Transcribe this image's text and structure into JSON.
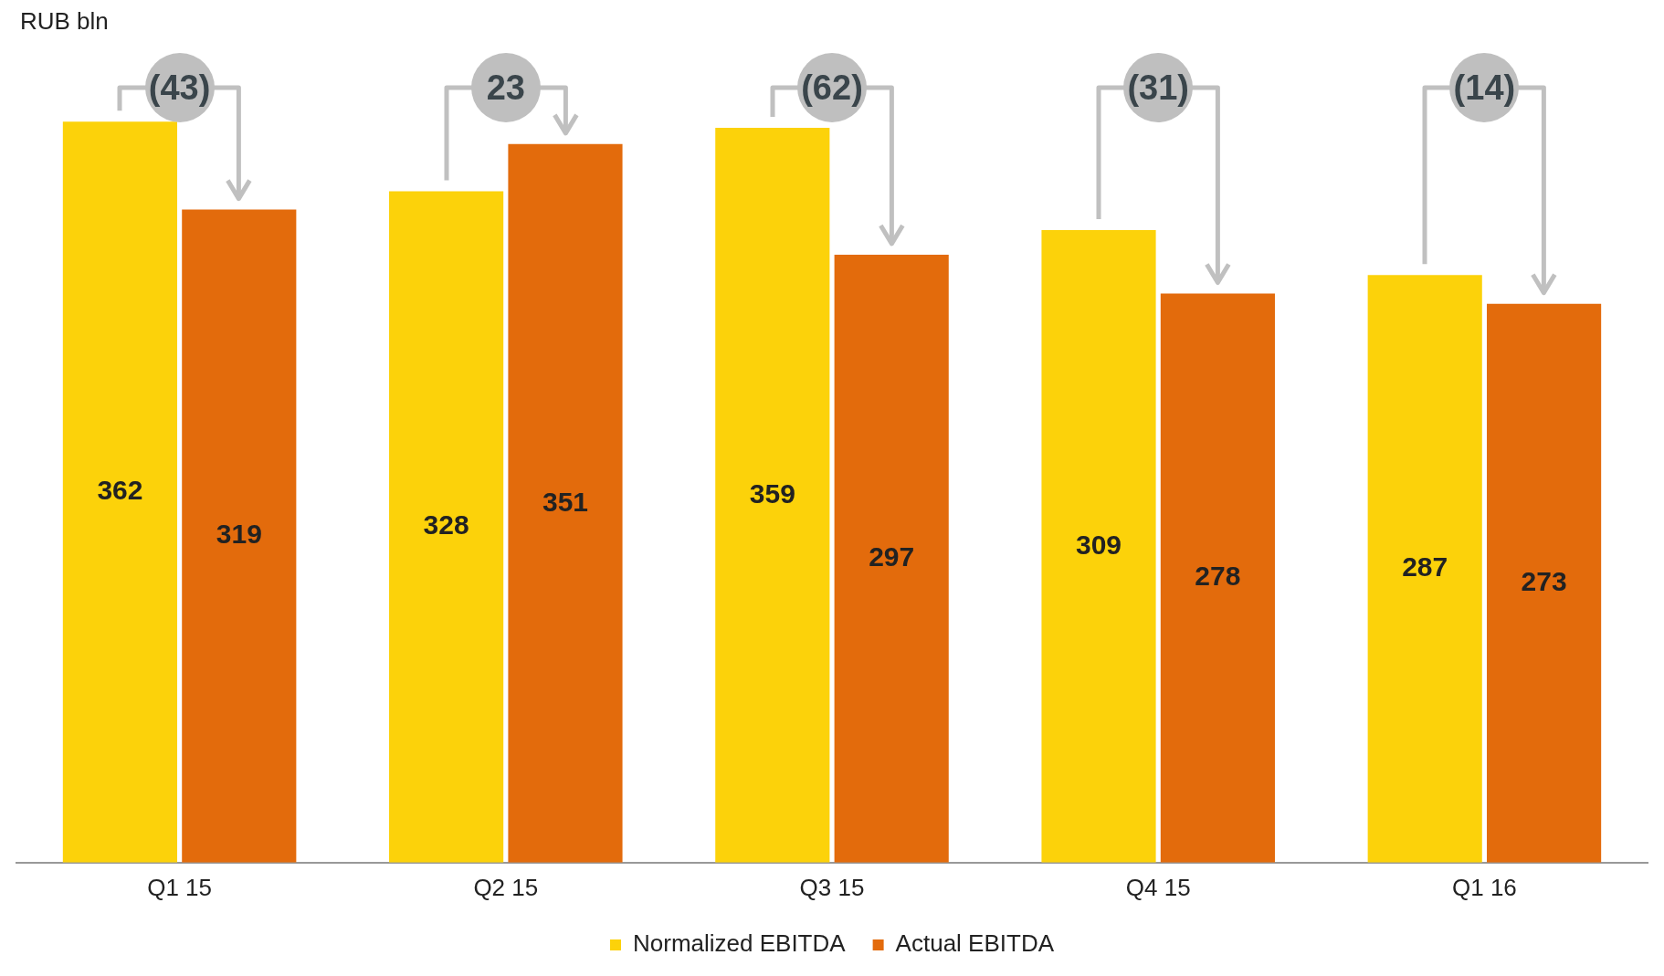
{
  "chart_data": {
    "type": "bar",
    "ylabel": "RUB bln",
    "categories": [
      "Q1 15",
      "Q2 15",
      "Q3 15",
      "Q4 15",
      "Q1 16"
    ],
    "series": [
      {
        "name": "Normalized EBITDA",
        "color": "#fcd20a",
        "values": [
          362,
          328,
          359,
          309,
          287
        ]
      },
      {
        "name": "Actual EBITDA",
        "color": "#e36b0c",
        "values": [
          319,
          351,
          297,
          278,
          273
        ]
      }
    ],
    "data_labels": true,
    "legend": "bottom",
    "grid": false,
    "annotations": [
      "(43)",
      "23",
      "(62)",
      "(31)",
      "(14)"
    ]
  }
}
